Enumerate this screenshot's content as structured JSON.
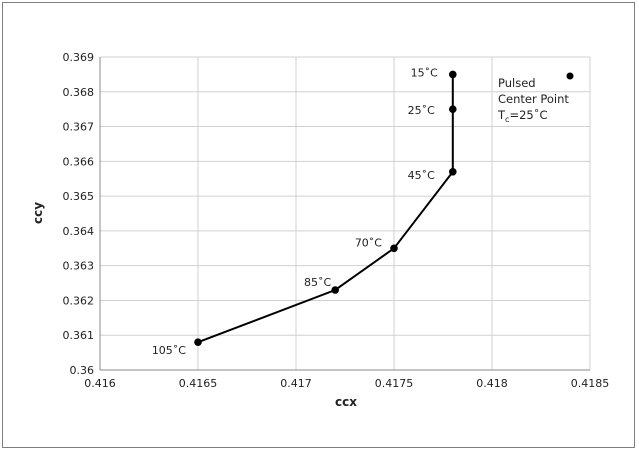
{
  "chart_data": {
    "type": "line",
    "title": "",
    "xlabel": "ccx",
    "ylabel": "ccy",
    "xlim": [
      0.416,
      0.4185
    ],
    "ylim": [
      0.36,
      0.369
    ],
    "x_ticks": [
      "0.416",
      "0.4165",
      "0.417",
      "0.4175",
      "0.418",
      "0.4185"
    ],
    "y_ticks": [
      "0.36",
      "0.361",
      "0.362",
      "0.363",
      "0.364",
      "0.365",
      "0.366",
      "0.367",
      "0.368",
      "0.369"
    ],
    "grid": true,
    "legend_position": "top-right",
    "legend": {
      "line1": "Pulsed",
      "line2": "Center Point",
      "line3_prefix": "T",
      "line3_sub": "c",
      "line3_suffix": "=25˚C"
    },
    "points": [
      {
        "x": 0.4165,
        "y": 0.3608,
        "label": "105˚C"
      },
      {
        "x": 0.4172,
        "y": 0.3623,
        "label": "85˚C"
      },
      {
        "x": 0.4175,
        "y": 0.3635,
        "label": "70˚C"
      },
      {
        "x": 0.4178,
        "y": 0.3657,
        "label": "45˚C"
      },
      {
        "x": 0.4178,
        "y": 0.3675,
        "label": "25˚C"
      },
      {
        "x": 0.4178,
        "y": 0.3685,
        "label": "15˚C"
      }
    ]
  }
}
